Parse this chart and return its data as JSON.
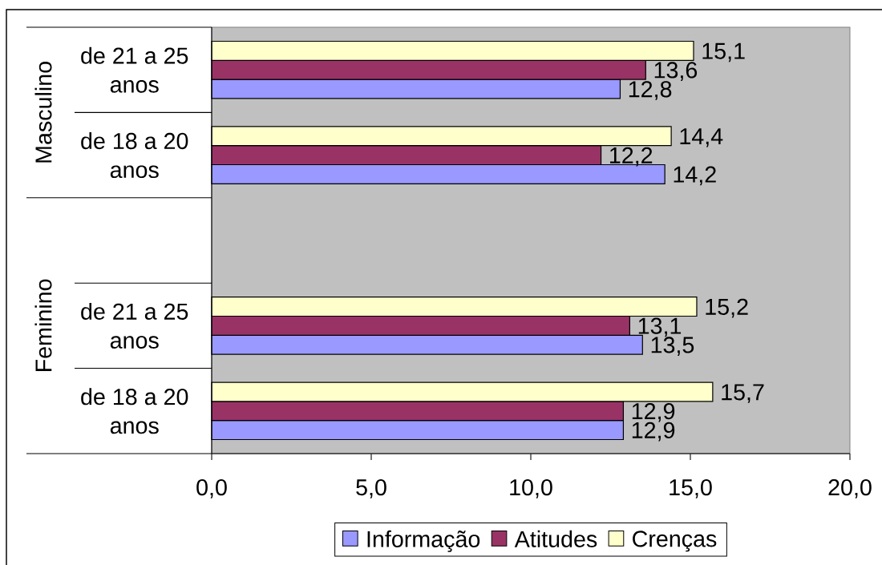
{
  "chart_data": {
    "type": "bar",
    "orientation": "horizontal",
    "categories": [
      "de 21 a 25 anos",
      "de 18 a 20 anos",
      null,
      "de 21 a 25 anos",
      "de 18 a 20 anos"
    ],
    "series": [
      {
        "name": "Informação",
        "color": "#9999ff",
        "values": [
          12.8,
          14.2,
          null,
          13.5,
          12.9
        ],
        "value_labels": [
          "12,8",
          "14,2",
          null,
          "13,5",
          "12,9"
        ]
      },
      {
        "name": "Atitudes",
        "color": "#993366",
        "values": [
          13.6,
          12.2,
          null,
          13.1,
          12.9
        ],
        "value_labels": [
          "13,6",
          "12,2",
          null,
          "13,1",
          "12,9"
        ]
      },
      {
        "name": "Crenças",
        "color": "#ffffcc",
        "values": [
          15.1,
          14.4,
          null,
          15.2,
          15.7
        ],
        "value_labels": [
          "15,1",
          "14,4",
          null,
          "15,2",
          "15,7"
        ]
      }
    ],
    "xlim": [
      0,
      20
    ],
    "xticks": [
      {
        "value": 0,
        "label": "0,0"
      },
      {
        "value": 5,
        "label": "5,0"
      },
      {
        "value": 10,
        "label": "10,0"
      },
      {
        "value": 15,
        "label": "15,0"
      },
      {
        "value": 20,
        "label": "20,0"
      }
    ],
    "legend": "bottom",
    "annotations": [
      "Masculino",
      "Feminino"
    ]
  }
}
